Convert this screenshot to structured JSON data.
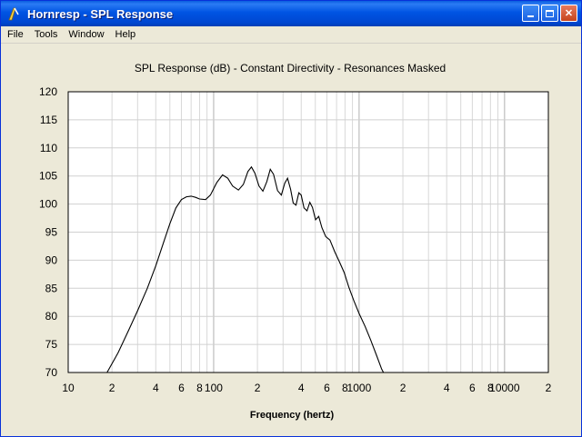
{
  "window": {
    "title": "Hornresp - SPL Response",
    "icon": "tuning-fork-icon",
    "buttons": {
      "minimize": "_",
      "maximize": "□",
      "close": "✕"
    }
  },
  "menu": [
    "File",
    "Tools",
    "Window",
    "Help"
  ],
  "chart_data": {
    "type": "line",
    "title": "SPL Response (dB) - Constant Directivity - Resonances Masked",
    "xlabel": "Frequency (hertz)",
    "ylabel": "",
    "x_scale": "log",
    "xlim": [
      10,
      20000
    ],
    "ylim": [
      70,
      120
    ],
    "grid": true,
    "x_tick_labels": [
      {
        "v": 10,
        "t": "10"
      },
      {
        "v": 20,
        "t": "2"
      },
      {
        "v": 40,
        "t": "4"
      },
      {
        "v": 60,
        "t": "6"
      },
      {
        "v": 80,
        "t": "8"
      },
      {
        "v": 100,
        "t": "100"
      },
      {
        "v": 200,
        "t": "2"
      },
      {
        "v": 400,
        "t": "4"
      },
      {
        "v": 600,
        "t": "6"
      },
      {
        "v": 800,
        "t": "8"
      },
      {
        "v": 1000,
        "t": "1000"
      },
      {
        "v": 2000,
        "t": "2"
      },
      {
        "v": 4000,
        "t": "4"
      },
      {
        "v": 6000,
        "t": "6"
      },
      {
        "v": 8000,
        "t": "8"
      },
      {
        "v": 10000,
        "t": "10000"
      },
      {
        "v": 20000,
        "t": "2"
      }
    ],
    "y_ticks": [
      120,
      115,
      110,
      105,
      100,
      95,
      90,
      85,
      80,
      75,
      70
    ],
    "series": [
      {
        "color": "#000000",
        "points": [
          [
            18.5,
            70
          ],
          [
            22,
            73.5
          ],
          [
            26,
            77.5
          ],
          [
            30,
            81
          ],
          [
            35,
            85
          ],
          [
            40,
            89
          ],
          [
            45,
            93
          ],
          [
            50,
            96.5
          ],
          [
            55,
            99.3
          ],
          [
            60,
            100.8
          ],
          [
            65,
            101.3
          ],
          [
            70,
            101.4
          ],
          [
            75,
            101.2
          ],
          [
            80,
            100.9
          ],
          [
            88,
            100.8
          ],
          [
            95,
            101.6
          ],
          [
            105,
            103.8
          ],
          [
            115,
            105.2
          ],
          [
            125,
            104.6
          ],
          [
            135,
            103.2
          ],
          [
            148,
            102.5
          ],
          [
            160,
            103.5
          ],
          [
            172,
            105.8
          ],
          [
            182,
            106.6
          ],
          [
            192,
            105.5
          ],
          [
            205,
            103.2
          ],
          [
            218,
            102.3
          ],
          [
            232,
            104.0
          ],
          [
            245,
            106.2
          ],
          [
            258,
            105.3
          ],
          [
            275,
            102.4
          ],
          [
            292,
            101.6
          ],
          [
            308,
            103.7
          ],
          [
            322,
            104.6
          ],
          [
            338,
            102.6
          ],
          [
            352,
            100.2
          ],
          [
            368,
            99.8
          ],
          [
            385,
            102.0
          ],
          [
            400,
            101.6
          ],
          [
            418,
            99.3
          ],
          [
            438,
            98.8
          ],
          [
            458,
            100.3
          ],
          [
            478,
            99.4
          ],
          [
            502,
            97.2
          ],
          [
            528,
            97.8
          ],
          [
            555,
            95.8
          ],
          [
            590,
            94.2
          ],
          [
            630,
            93.6
          ],
          [
            680,
            91.5
          ],
          [
            730,
            89.8
          ],
          [
            790,
            87.8
          ],
          [
            850,
            85.2
          ],
          [
            920,
            82.8
          ],
          [
            1000,
            80.5
          ],
          [
            1100,
            78.2
          ],
          [
            1200,
            75.8
          ],
          [
            1320,
            73.0
          ],
          [
            1430,
            70.6
          ],
          [
            1470,
            70
          ]
        ]
      }
    ]
  }
}
